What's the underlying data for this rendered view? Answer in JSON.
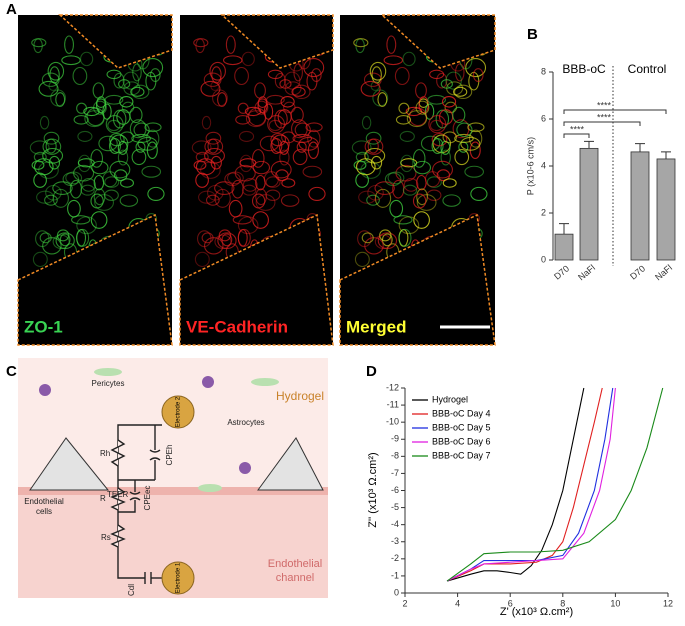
{
  "panel_labels": [
    "A",
    "B",
    "C",
    "D"
  ],
  "images": {
    "captions": [
      "ZO-1",
      "VE-Cadherin",
      "Merged"
    ]
  },
  "diagram": {
    "hydrogel": "Hydrogel",
    "pericytes": "Pericytes",
    "astrocytes": "Astrocytes",
    "endothelial_cells": [
      "Endothelial",
      "cells"
    ],
    "endothelial_channel": [
      "Endothelial",
      "channel"
    ],
    "electrode_2": "Electrode 2",
    "electrode_1": "Electrode 1",
    "rh": "Rh",
    "cpeh": "CPEh",
    "r_teer": {
      "main": "R",
      "sub": "TEER"
    },
    "cpeec": "CPEec",
    "rs": "Rs",
    "cdl": "Cdl"
  },
  "chart_data": [
    {
      "type": "bar",
      "y_label": "P (x10-6 cm/s)",
      "groups": [
        "BBB-oC",
        "Control"
      ],
      "categories": [
        "D70",
        "NaFl",
        "D70",
        "NaFl"
      ],
      "values": [
        1.1,
        4.75,
        4.6,
        4.3
      ],
      "errors": [
        0.45,
        0.3,
        0.35,
        0.3
      ],
      "color": "#a6a6a6",
      "ylim": [
        0,
        8
      ],
      "yticks": [
        0,
        2,
        4,
        6,
        8
      ],
      "annotations": [
        "****",
        "****",
        "****"
      ]
    },
    {
      "type": "line",
      "x_label": "Z' (x10³ Ω.cm²)",
      "y_label": "Z'' (x10³ Ω.cm²)",
      "xlim": [
        2,
        12
      ],
      "xticks": [
        2,
        4,
        6,
        8,
        10,
        12
      ],
      "ylim": [
        0,
        -12
      ],
      "yticks": [
        0,
        -1,
        -2,
        -3,
        -4,
        -5,
        -6,
        -7,
        -8,
        -9,
        -10,
        -11,
        -12
      ],
      "series": [
        {
          "name": "Hydrogel",
          "color": "#000000",
          "x": [
            3.6,
            4.5,
            5,
            5.5,
            6,
            6.4,
            6.8,
            7.2,
            7.6,
            8,
            8.4,
            8.8
          ],
          "values": [
            -0.7,
            -1.1,
            -1.3,
            -1.3,
            -1.2,
            -1.1,
            -1.6,
            -2.5,
            -4,
            -6,
            -9,
            -12
          ]
        },
        {
          "name": "BBB-oC Day 4",
          "color": "#e02020",
          "x": [
            3.6,
            4.5,
            5,
            6,
            7,
            7.6,
            8,
            8.4,
            8.8,
            9.2,
            9.5
          ],
          "values": [
            -0.7,
            -1.3,
            -1.7,
            -1.7,
            -1.8,
            -2.2,
            -3,
            -5,
            -7.5,
            -10,
            -12
          ]
        },
        {
          "name": "BBB-oC Day 5",
          "color": "#2030e0",
          "x": [
            3.6,
            4.5,
            5,
            6,
            7,
            8,
            8.6,
            9.2,
            9.6,
            9.9
          ],
          "values": [
            -0.7,
            -1.4,
            -1.9,
            -1.9,
            -1.9,
            -2.2,
            -3.5,
            -6,
            -9,
            -12
          ]
        },
        {
          "name": "BBB-oC Day 6",
          "color": "#e020e0",
          "x": [
            3.6,
            4.5,
            5,
            6,
            7,
            8,
            8.8,
            9.4,
            9.8,
            10
          ],
          "values": [
            -0.7,
            -1.4,
            -1.7,
            -1.8,
            -1.9,
            -2,
            -3.5,
            -6,
            -9,
            -12
          ]
        },
        {
          "name": "BBB-oC Day 7",
          "color": "#1a8a1a",
          "x": [
            3.6,
            4.5,
            5,
            6,
            7,
            8,
            9,
            10,
            10.6,
            11.2,
            11.8
          ],
          "values": [
            -0.7,
            -1.7,
            -2.3,
            -2.4,
            -2.4,
            -2.5,
            -3,
            -4.3,
            -6,
            -8.5,
            -12
          ]
        }
      ]
    }
  ]
}
